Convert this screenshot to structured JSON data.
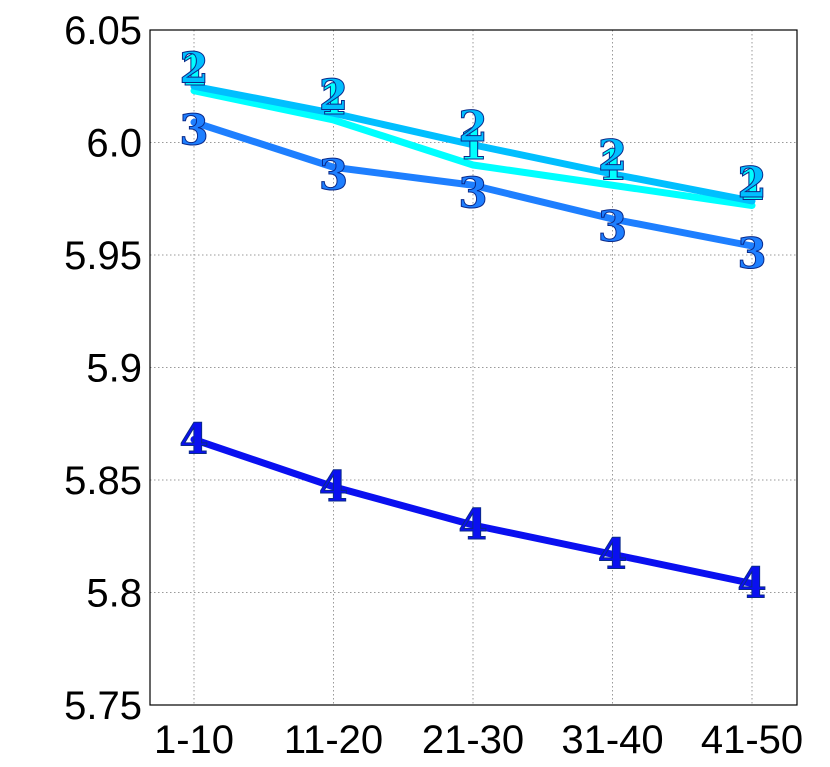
{
  "chart_data": {
    "type": "line",
    "title": "",
    "xlabel": "",
    "ylabel": "",
    "categories": [
      "1-10",
      "11-20",
      "21-30",
      "31-40",
      "41-50"
    ],
    "ylim": [
      5.75,
      6.05
    ],
    "yticks": [
      "5.75",
      "5.8",
      "5.85",
      "5.9",
      "5.95",
      "6.0",
      "6.05"
    ],
    "grid": true,
    "legend": "none",
    "series": [
      {
        "marker": "1",
        "color": "#00ffff",
        "values": [
          6.023,
          6.01,
          5.99,
          5.981,
          5.972
        ]
      },
      {
        "marker": "2",
        "color": "#00bfff",
        "values": [
          6.025,
          6.013,
          5.999,
          5.986,
          5.974
        ]
      },
      {
        "marker": "3",
        "color": "#1e7fff",
        "values": [
          6.009,
          5.989,
          5.981,
          5.966,
          5.954
        ]
      },
      {
        "marker": "4",
        "color": "#0a10f0",
        "values": [
          5.868,
          5.847,
          5.83,
          5.817,
          5.804
        ]
      }
    ]
  }
}
